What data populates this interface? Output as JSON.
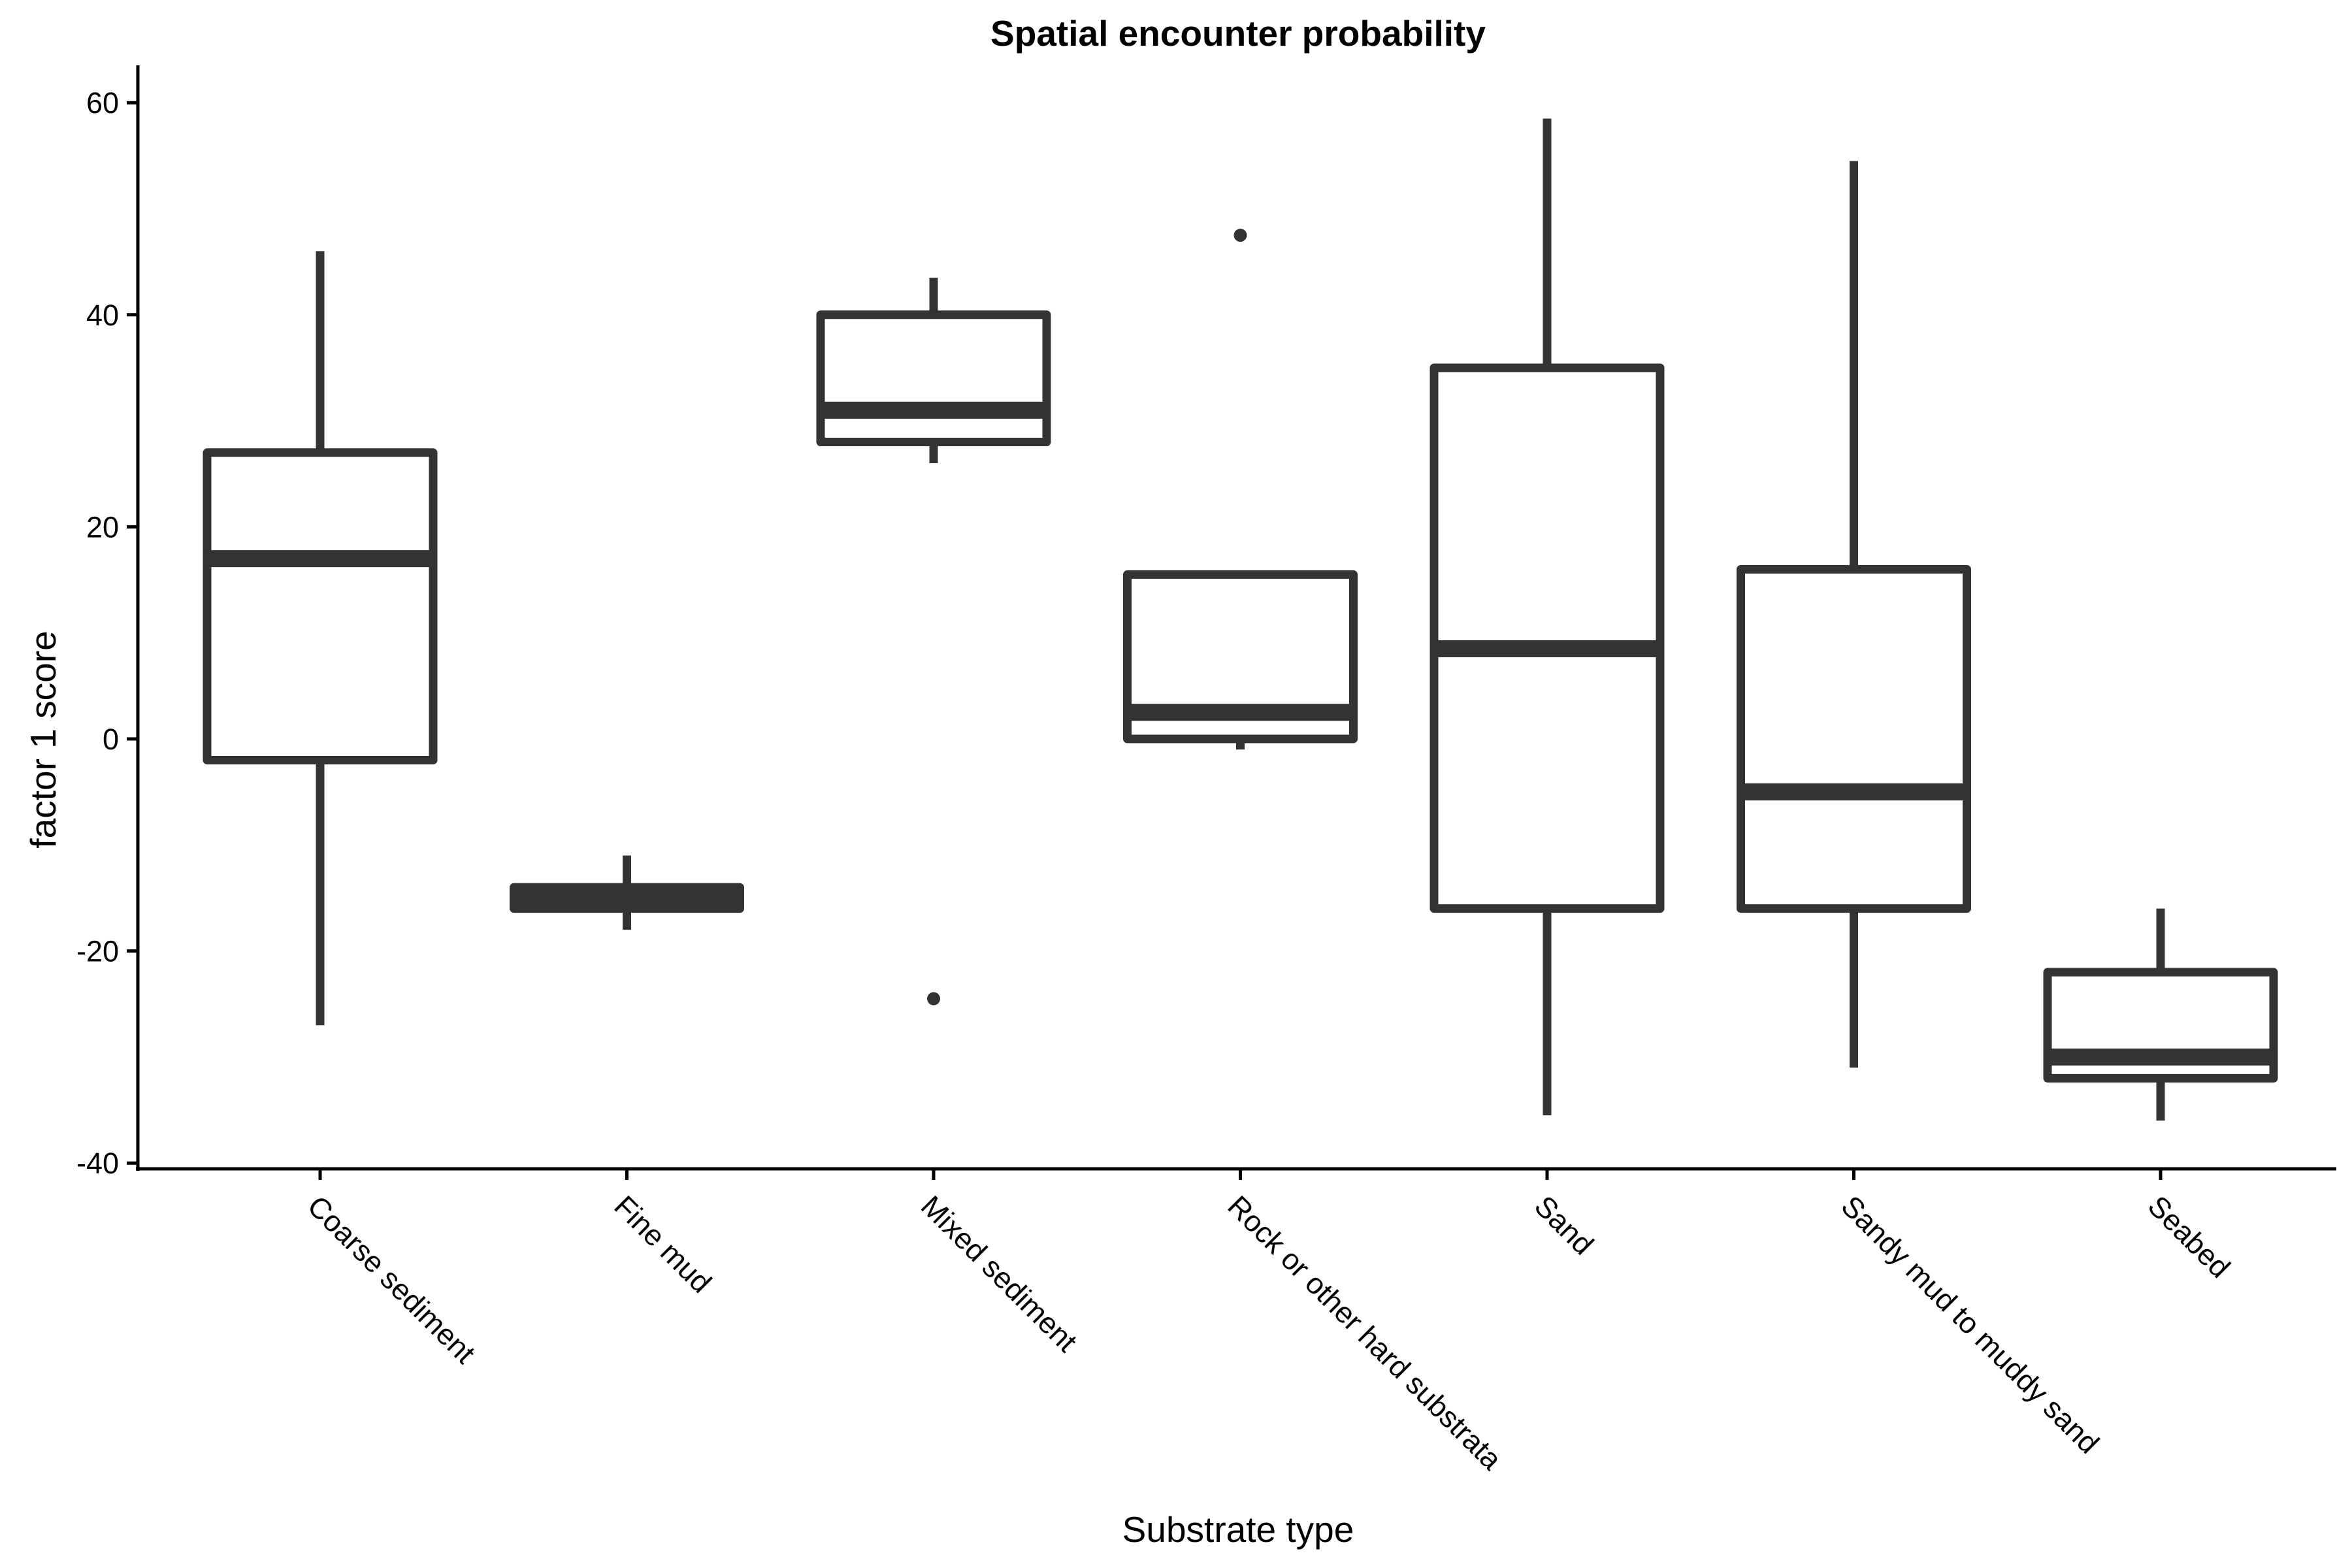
{
  "chart_data": {
    "type": "boxplot",
    "title": "Spatial encounter probability",
    "xlabel": "Substrate type",
    "ylabel": "factor 1 score",
    "ylim": [
      -41,
      63
    ],
    "y_ticks": [
      60,
      40,
      20,
      0,
      -20,
      -40
    ],
    "grid": false,
    "legend": "none",
    "color": "#333333",
    "categories": [
      "Coarse sediment",
      "Fine mud",
      "Mixed sediment",
      "Rock or other hard substrata",
      "Sand",
      "Sandy mud to muddy sand",
      "Seabed"
    ],
    "boxes": [
      {
        "category": "Coarse sediment",
        "min": -27,
        "q1": -2,
        "median": 17,
        "q3": 27,
        "max": 46,
        "outliers": []
      },
      {
        "category": "Fine mud",
        "min": -18,
        "q1": -16,
        "median": -15,
        "q3": -14,
        "max": -11,
        "outliers": []
      },
      {
        "category": "Mixed sediment",
        "min": 26,
        "q1": 28,
        "median": 31,
        "q3": 40,
        "max": 43.5,
        "outliers": [
          -24.5
        ]
      },
      {
        "category": "Rock or other hard substrata",
        "min": -1,
        "q1": 0,
        "median": 2.5,
        "q3": 15.5,
        "max": 15.5,
        "outliers": [
          47.5
        ]
      },
      {
        "category": "Sand",
        "min": -35.5,
        "q1": -16,
        "median": 8.5,
        "q3": 35,
        "max": 58.5,
        "outliers": []
      },
      {
        "category": "Sandy mud to muddy sand",
        "min": -31,
        "q1": -16,
        "median": -5,
        "q3": 16,
        "max": 54.5,
        "outliers": []
      },
      {
        "category": "Seabed",
        "min": -36,
        "q1": -32,
        "median": -30,
        "q3": -22,
        "max": -16,
        "outliers": []
      }
    ]
  }
}
